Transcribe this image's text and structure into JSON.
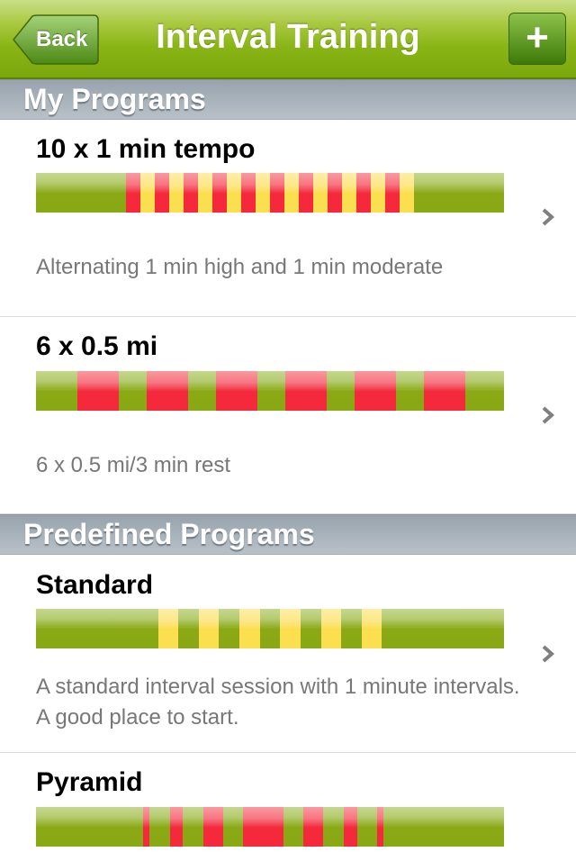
{
  "nav": {
    "title": "Interval Training",
    "back_label": "Back",
    "add_label": "+"
  },
  "colors": {
    "nav_green": "#8ab516",
    "warm": "#88a814",
    "high": "#f42a3c",
    "moderate": "#fbdf4f"
  },
  "sections": [
    {
      "title": "My Programs",
      "programs": [
        {
          "name": "10 x 1 min tempo",
          "description": "Alternating 1 min high and 1 min moderate",
          "segments": [
            [
              "g",
              6.25
            ],
            [
              "r",
              1
            ],
            [
              "y",
              1
            ],
            [
              "r",
              1
            ],
            [
              "y",
              1
            ],
            [
              "r",
              1
            ],
            [
              "y",
              1
            ],
            [
              "r",
              1
            ],
            [
              "y",
              1
            ],
            [
              "r",
              1
            ],
            [
              "y",
              1
            ],
            [
              "r",
              1
            ],
            [
              "y",
              1
            ],
            [
              "r",
              1
            ],
            [
              "y",
              1
            ],
            [
              "r",
              1
            ],
            [
              "y",
              1
            ],
            [
              "r",
              1
            ],
            [
              "y",
              1
            ],
            [
              "r",
              1
            ],
            [
              "y",
              1
            ],
            [
              "g",
              6.25
            ]
          ]
        },
        {
          "name": "6 x 0.5 mi",
          "description": "6 x 0.5 mi/3 min rest",
          "segments": [
            [
              "g",
              1.5
            ],
            [
              "r",
              1.5
            ],
            [
              "g",
              1
            ],
            [
              "r",
              1.5
            ],
            [
              "g",
              1
            ],
            [
              "r",
              1.5
            ],
            [
              "g",
              1
            ],
            [
              "r",
              1.5
            ],
            [
              "g",
              1
            ],
            [
              "r",
              1.5
            ],
            [
              "g",
              1
            ],
            [
              "r",
              1.5
            ],
            [
              "g",
              1.4
            ]
          ]
        }
      ]
    },
    {
      "title": "Predefined Programs",
      "programs": [
        {
          "name": "Standard",
          "description": "A standard interval session with 1 minute intervals. A good place to start.",
          "segments": [
            [
              "g",
              6
            ],
            [
              "y",
              1
            ],
            [
              "g",
              1
            ],
            [
              "y",
              1
            ],
            [
              "g",
              1
            ],
            [
              "y",
              1
            ],
            [
              "g",
              1
            ],
            [
              "y",
              1
            ],
            [
              "g",
              1
            ],
            [
              "y",
              1
            ],
            [
              "g",
              1
            ],
            [
              "y",
              1
            ],
            [
              "g",
              6
            ]
          ]
        },
        {
          "name": "Pyramid",
          "description": "",
          "segments": [
            [
              "g",
              16
            ],
            [
              "r",
              1
            ],
            [
              "g",
              3
            ],
            [
              "r",
              2
            ],
            [
              "g",
              3
            ],
            [
              "r",
              3
            ],
            [
              "g",
              3
            ],
            [
              "r",
              6
            ],
            [
              "g",
              3
            ],
            [
              "r",
              3
            ],
            [
              "g",
              3
            ],
            [
              "r",
              2
            ],
            [
              "g",
              3
            ],
            [
              "r",
              1
            ],
            [
              "g",
              18
            ]
          ]
        }
      ]
    }
  ]
}
